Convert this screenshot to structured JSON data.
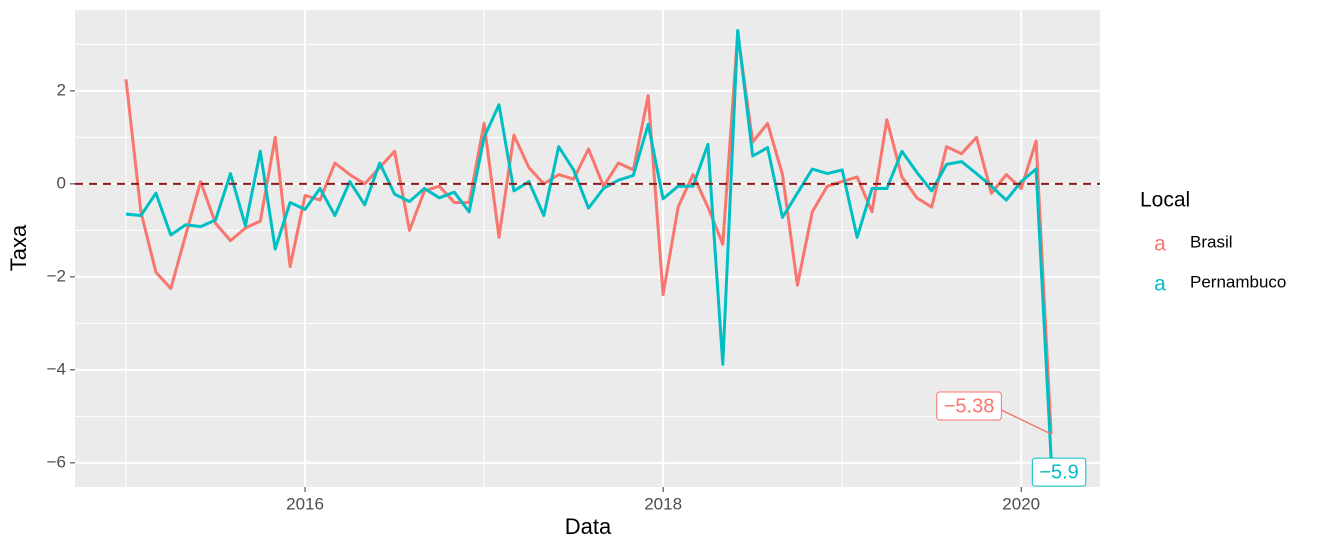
{
  "chart_data": {
    "type": "line",
    "x_label": "Data",
    "y_label": "Taxa",
    "x": [
      "2015-01",
      "2015-02",
      "2015-03",
      "2015-04",
      "2015-05",
      "2015-06",
      "2015-07",
      "2015-08",
      "2015-09",
      "2015-10",
      "2015-11",
      "2015-12",
      "2016-01",
      "2016-02",
      "2016-03",
      "2016-04",
      "2016-05",
      "2016-06",
      "2016-07",
      "2016-08",
      "2016-09",
      "2016-10",
      "2016-11",
      "2016-12",
      "2017-01",
      "2017-02",
      "2017-03",
      "2017-04",
      "2017-05",
      "2017-06",
      "2017-07",
      "2017-08",
      "2017-09",
      "2017-10",
      "2017-11",
      "2017-12",
      "2018-01",
      "2018-02",
      "2018-03",
      "2018-04",
      "2018-05",
      "2018-06",
      "2018-07",
      "2018-08",
      "2018-09",
      "2018-10",
      "2018-11",
      "2018-12",
      "2019-01",
      "2019-02",
      "2019-03",
      "2019-04",
      "2019-05",
      "2019-06",
      "2019-07",
      "2019-08",
      "2019-09",
      "2019-10",
      "2019-11",
      "2019-12",
      "2020-01",
      "2020-02",
      "2020-03"
    ],
    "series": [
      {
        "name": "Brasil",
        "color": "#f8766d",
        "values": [
          2.25,
          -0.6,
          -1.9,
          -2.25,
          -1.1,
          0.05,
          -0.85,
          -1.22,
          -0.95,
          -0.8,
          1.0,
          -1.78,
          -0.25,
          -0.35,
          0.45,
          0.2,
          0.0,
          0.35,
          0.7,
          -1.0,
          -0.15,
          -0.05,
          -0.4,
          -0.4,
          1.3,
          -1.15,
          1.05,
          0.35,
          0.0,
          0.2,
          0.1,
          0.75,
          -0.05,
          0.45,
          0.3,
          1.9,
          -2.38,
          -0.5,
          0.2,
          -0.5,
          -1.3,
          3.25,
          0.9,
          1.3,
          0.2,
          -2.18,
          -0.6,
          -0.05,
          0.05,
          0.15,
          -0.6,
          1.38,
          0.15,
          -0.3,
          -0.5,
          0.8,
          0.65,
          1.0,
          -0.2,
          0.2,
          -0.1,
          0.92,
          -5.38
        ]
      },
      {
        "name": "Pernambuco",
        "color": "#00bfc4",
        "values": [
          -0.65,
          -0.68,
          -0.2,
          -1.1,
          -0.88,
          -0.92,
          -0.78,
          0.22,
          -0.9,
          0.7,
          -1.4,
          -0.4,
          -0.55,
          -0.1,
          -0.68,
          0.05,
          -0.45,
          0.45,
          -0.22,
          -0.38,
          -0.1,
          -0.3,
          -0.18,
          -0.6,
          1.0,
          1.7,
          -0.15,
          0.05,
          -0.68,
          0.8,
          0.3,
          -0.52,
          -0.1,
          0.08,
          0.18,
          1.28,
          -0.32,
          -0.05,
          -0.05,
          0.85,
          -3.88,
          3.3,
          0.6,
          0.78,
          -0.72,
          -0.2,
          0.32,
          0.22,
          0.3,
          -1.15,
          -0.1,
          -0.1,
          0.7,
          0.25,
          -0.15,
          0.42,
          0.48,
          0.22,
          -0.05,
          -0.35,
          0.05,
          0.32,
          -5.9
        ]
      }
    ],
    "annotations": [
      {
        "text": "−5.38",
        "x": "2020-03",
        "y": -5.38,
        "color": "#f8766d"
      },
      {
        "text": "−5.9",
        "x": "2020-03",
        "y": -5.9,
        "color": "#00bfc4"
      }
    ],
    "hline": 0,
    "hline_color": "#8b1a1a",
    "xlim": [
      2014.715,
      2020.44
    ],
    "xticks": [
      2016,
      2018,
      2020
    ],
    "minor_xticks": [
      2015,
      2017,
      2019
    ],
    "ylim": [
      -6.52,
      3.74
    ],
    "yticks": [
      {
        "value": -6,
        "label": "−6"
      },
      {
        "value": -4,
        "label": "−4"
      },
      {
        "value": -2,
        "label": "−2"
      },
      0,
      2
    ],
    "minor_yticks": [
      -5,
      -3,
      -1,
      1,
      3
    ],
    "grid": true,
    "legend_title": "Local",
    "legend_position": "right",
    "legend_key": "a"
  }
}
